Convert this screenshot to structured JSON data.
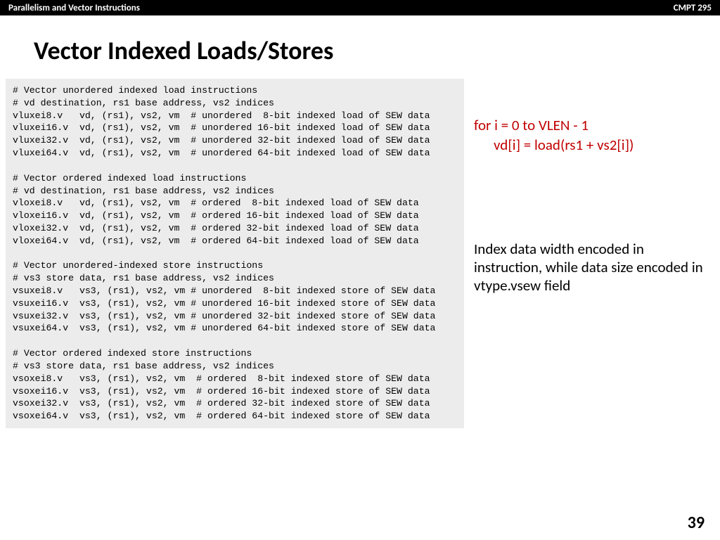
{
  "header": {
    "left": "Parallelism and Vector Instructions",
    "right": "CMPT 295"
  },
  "title": "Vector Indexed Loads/Stores",
  "code": "# Vector unordered indexed load instructions\n# vd destination, rs1 base address, vs2 indices\nvluxei8.v   vd, (rs1), vs2, vm  # unordered  8-bit indexed load of SEW data\nvluxei16.v  vd, (rs1), vs2, vm  # unordered 16-bit indexed load of SEW data\nvluxei32.v  vd, (rs1), vs2, vm  # unordered 32-bit indexed load of SEW data\nvluxei64.v  vd, (rs1), vs2, vm  # unordered 64-bit indexed load of SEW data\n\n# Vector ordered indexed load instructions\n# vd destination, rs1 base address, vs2 indices\nvloxei8.v   vd, (rs1), vs2, vm  # ordered  8-bit indexed load of SEW data\nvloxei16.v  vd, (rs1), vs2, vm  # ordered 16-bit indexed load of SEW data\nvloxei32.v  vd, (rs1), vs2, vm  # ordered 32-bit indexed load of SEW data\nvloxei64.v  vd, (rs1), vs2, vm  # ordered 64-bit indexed load of SEW data\n\n# Vector unordered-indexed store instructions\n# vs3 store data, rs1 base address, vs2 indices\nvsuxei8.v   vs3, (rs1), vs2, vm # unordered  8-bit indexed store of SEW data\nvsuxei16.v  vs3, (rs1), vs2, vm # unordered 16-bit indexed store of SEW data\nvsuxei32.v  vs3, (rs1), vs2, vm # unordered 32-bit indexed store of SEW data\nvsuxei64.v  vs3, (rs1), vs2, vm # unordered 64-bit indexed store of SEW data\n\n# Vector ordered indexed store instructions\n# vs3 store data, rs1 base address, vs2 indices\nvsoxei8.v   vs3, (rs1), vs2, vm  # ordered  8-bit indexed store of SEW data\nvsoxei16.v  vs3, (rs1), vs2, vm  # ordered 16-bit indexed store of SEW data\nvsoxei32.v  vs3, (rs1), vs2, vm  # ordered 32-bit indexed store of SEW data\nvsoxei64.v  vs3, (rs1), vs2, vm  # ordered 64-bit indexed store of SEW data",
  "pseudo": {
    "line1": "for i = 0 to VLEN - 1",
    "line2": "vd[i] = load(rs1 + vs2[i])"
  },
  "note": "Index data width encoded in instruction, while data size encoded in vtype.vsew field",
  "page": "39",
  "colors": {
    "accent_red": "#c00000",
    "code_bg": "#ececec",
    "topbar_bg": "#000000"
  }
}
